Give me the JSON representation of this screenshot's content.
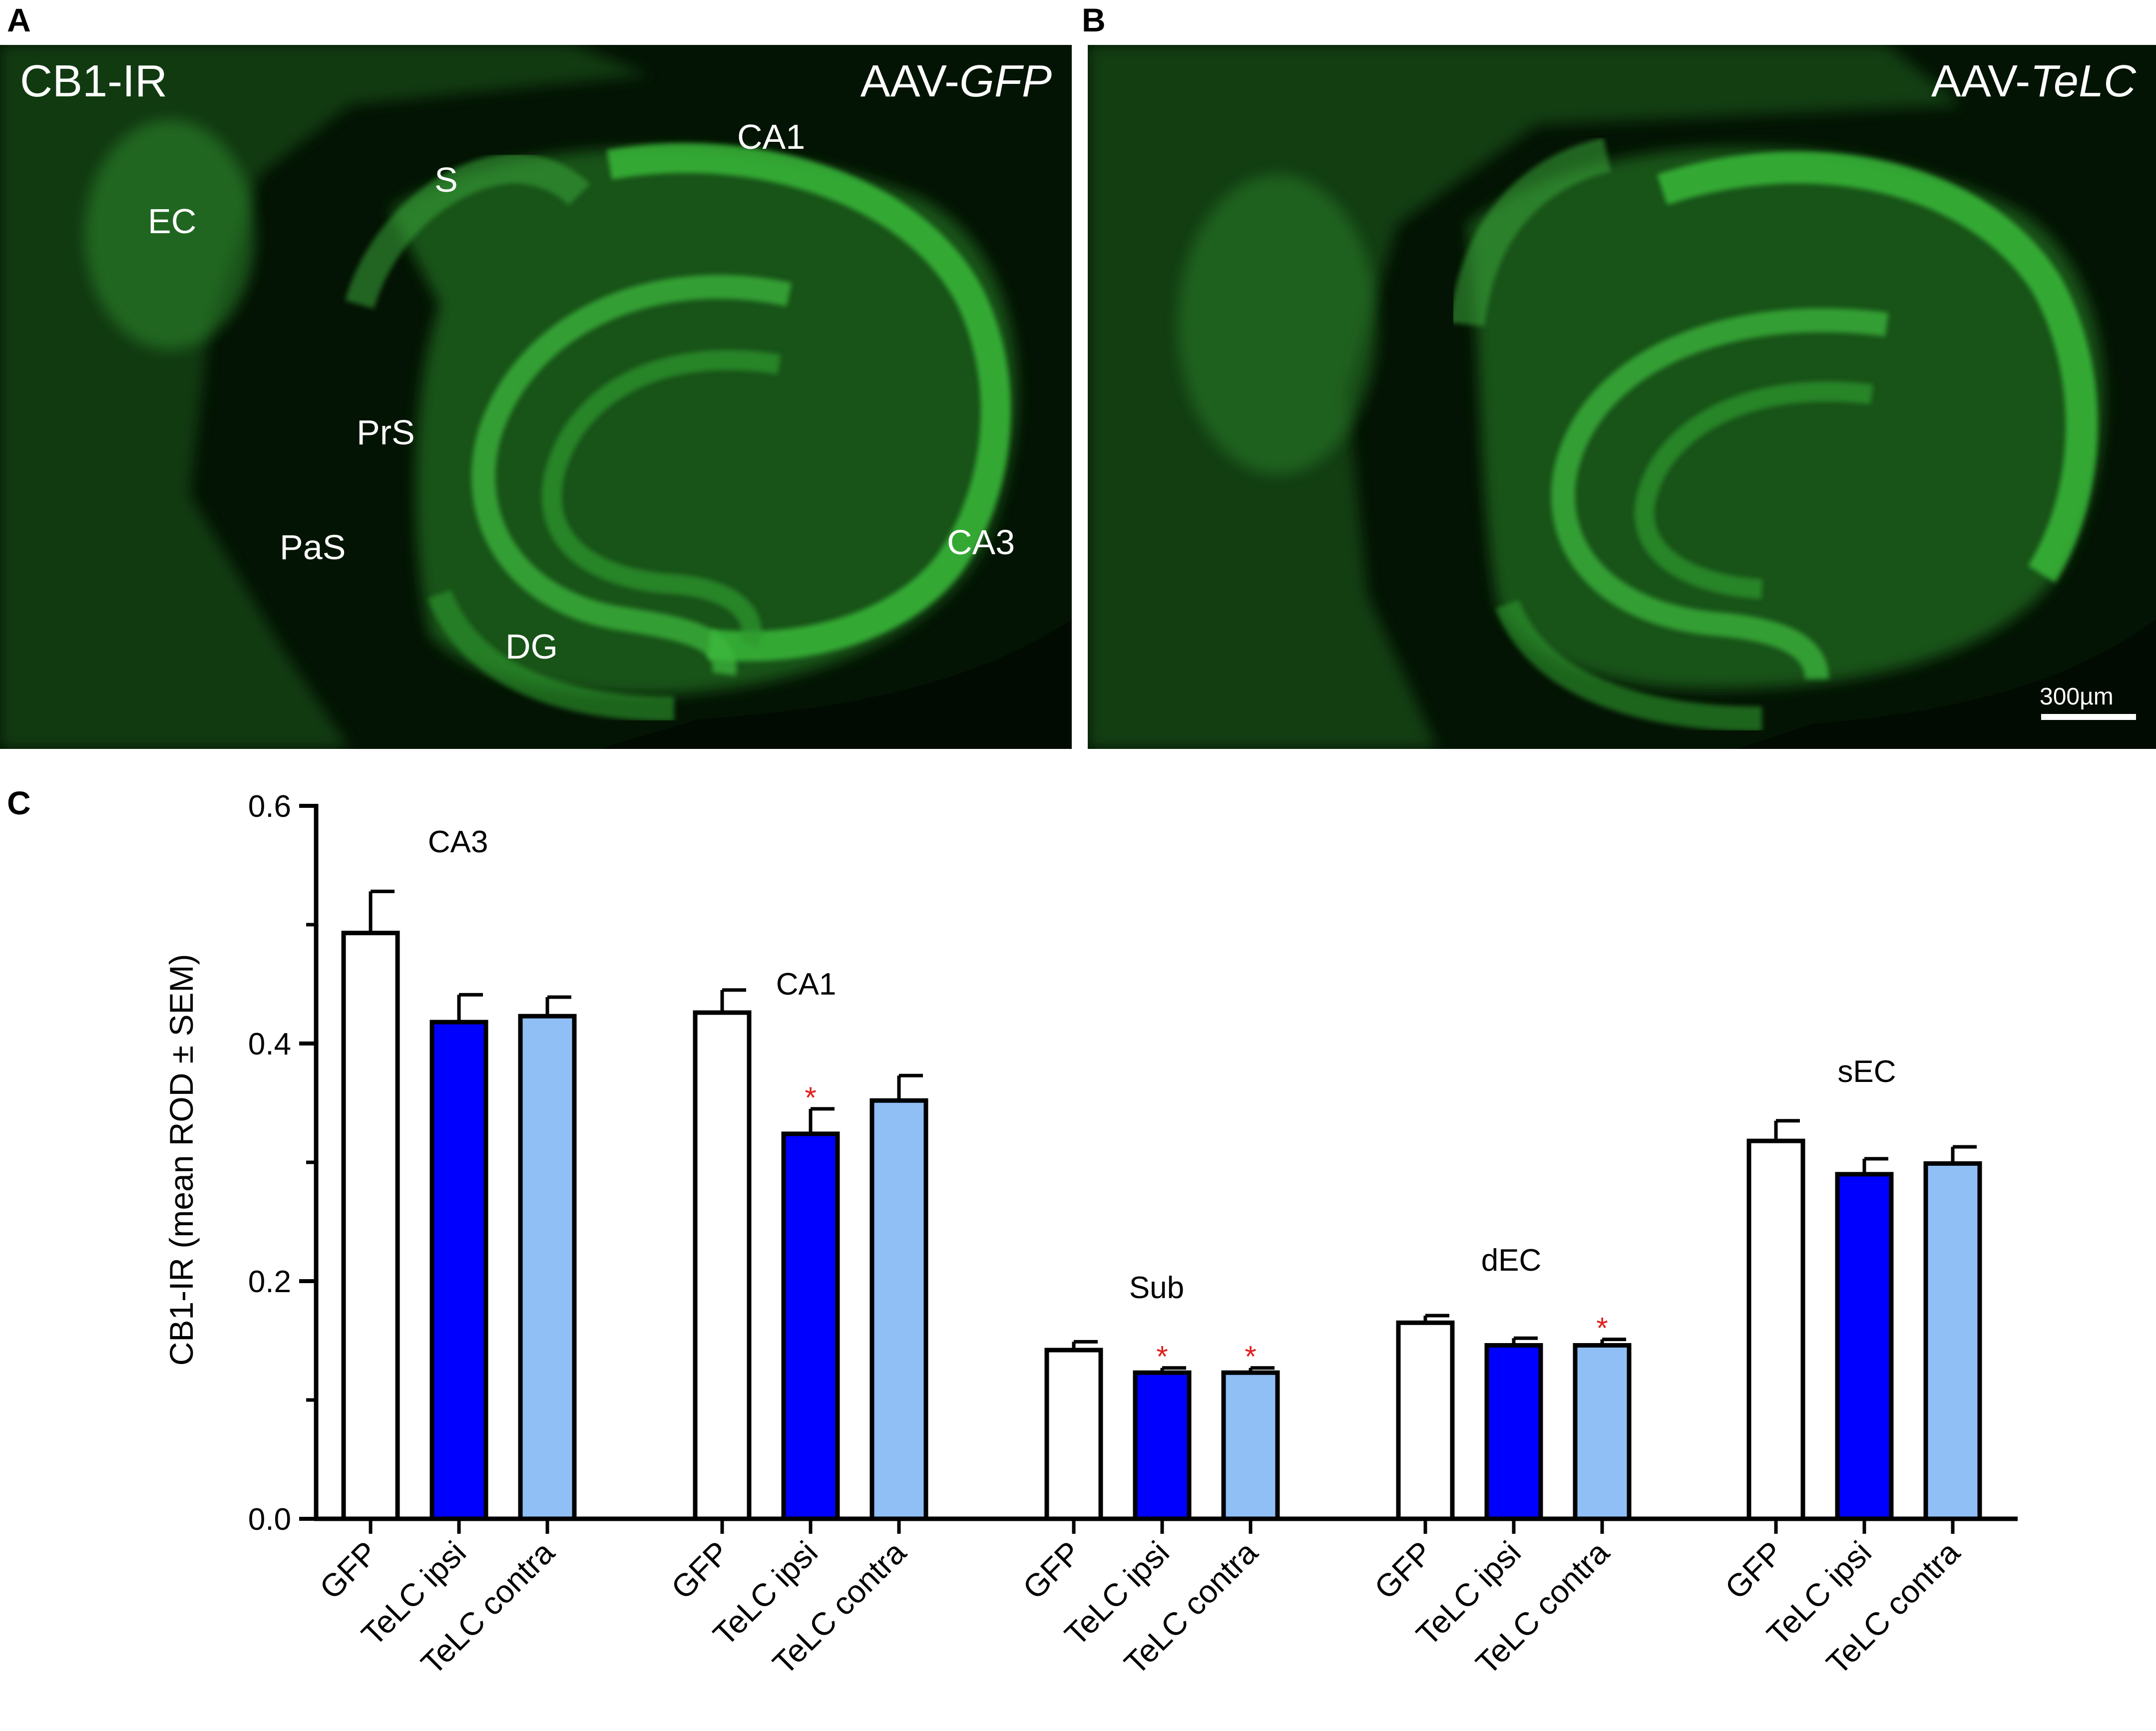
{
  "panels": {
    "a_letter": "A",
    "b_letter": "B",
    "c_letter": "C"
  },
  "panel_a": {
    "stain_label": "CB1-IR",
    "condition_prefix": "AAV-",
    "condition_gene": "GFP",
    "regions": [
      "EC",
      "S",
      "CA1",
      "PrS",
      "PaS",
      "CA3",
      "DG"
    ]
  },
  "panel_b": {
    "condition_prefix": "AAV-",
    "condition_gene": "TeLC",
    "scale_bar_label": "300µm"
  },
  "colors": {
    "tissue_dark": "#041404",
    "tissue_green": "#2f8f2f",
    "gfp_bar": "#ffffff",
    "ipsi_bar": "#0000ff",
    "contra_bar": "#8fbff5",
    "significance": "#e0201e"
  },
  "chart_data": {
    "type": "bar",
    "ylabel": "CB1-IR (mean ROD ± SEM)",
    "ylim": [
      0,
      0.6
    ],
    "yticks": [
      "0.0",
      "0.2",
      "0.4",
      "0.6"
    ],
    "groups": [
      {
        "name": "CA3",
        "bars": [
          {
            "category": "GFP",
            "value": 0.493,
            "sem": 0.035,
            "sig": false
          },
          {
            "category": "TeLC ipsi",
            "value": 0.418,
            "sem": 0.023,
            "sig": false
          },
          {
            "category": "TeLC contra",
            "value": 0.423,
            "sem": 0.016,
            "sig": false
          }
        ]
      },
      {
        "name": "CA1",
        "bars": [
          {
            "category": "GFP",
            "value": 0.426,
            "sem": 0.019,
            "sig": false
          },
          {
            "category": "TeLC ipsi",
            "value": 0.324,
            "sem": 0.021,
            "sig": true
          },
          {
            "category": "TeLC contra",
            "value": 0.352,
            "sem": 0.021,
            "sig": false
          }
        ]
      },
      {
        "name": "Sub",
        "bars": [
          {
            "category": "GFP",
            "value": 0.142,
            "sem": 0.007,
            "sig": false
          },
          {
            "category": "TeLC ipsi",
            "value": 0.123,
            "sem": 0.004,
            "sig": true
          },
          {
            "category": "TeLC contra",
            "value": 0.123,
            "sem": 0.004,
            "sig": true
          }
        ]
      },
      {
        "name": "dEC",
        "bars": [
          {
            "category": "GFP",
            "value": 0.165,
            "sem": 0.006,
            "sig": false
          },
          {
            "category": "TeLC ipsi",
            "value": 0.146,
            "sem": 0.006,
            "sig": false
          },
          {
            "category": "TeLC contra",
            "value": 0.146,
            "sem": 0.005,
            "sig": true
          }
        ]
      },
      {
        "name": "sEC",
        "bars": [
          {
            "category": "GFP",
            "value": 0.318,
            "sem": 0.017,
            "sig": false
          },
          {
            "category": "TeLC ipsi",
            "value": 0.29,
            "sem": 0.013,
            "sig": false
          },
          {
            "category": "TeLC contra",
            "value": 0.299,
            "sem": 0.014,
            "sig": false
          }
        ]
      }
    ],
    "significance_marker": "*"
  }
}
